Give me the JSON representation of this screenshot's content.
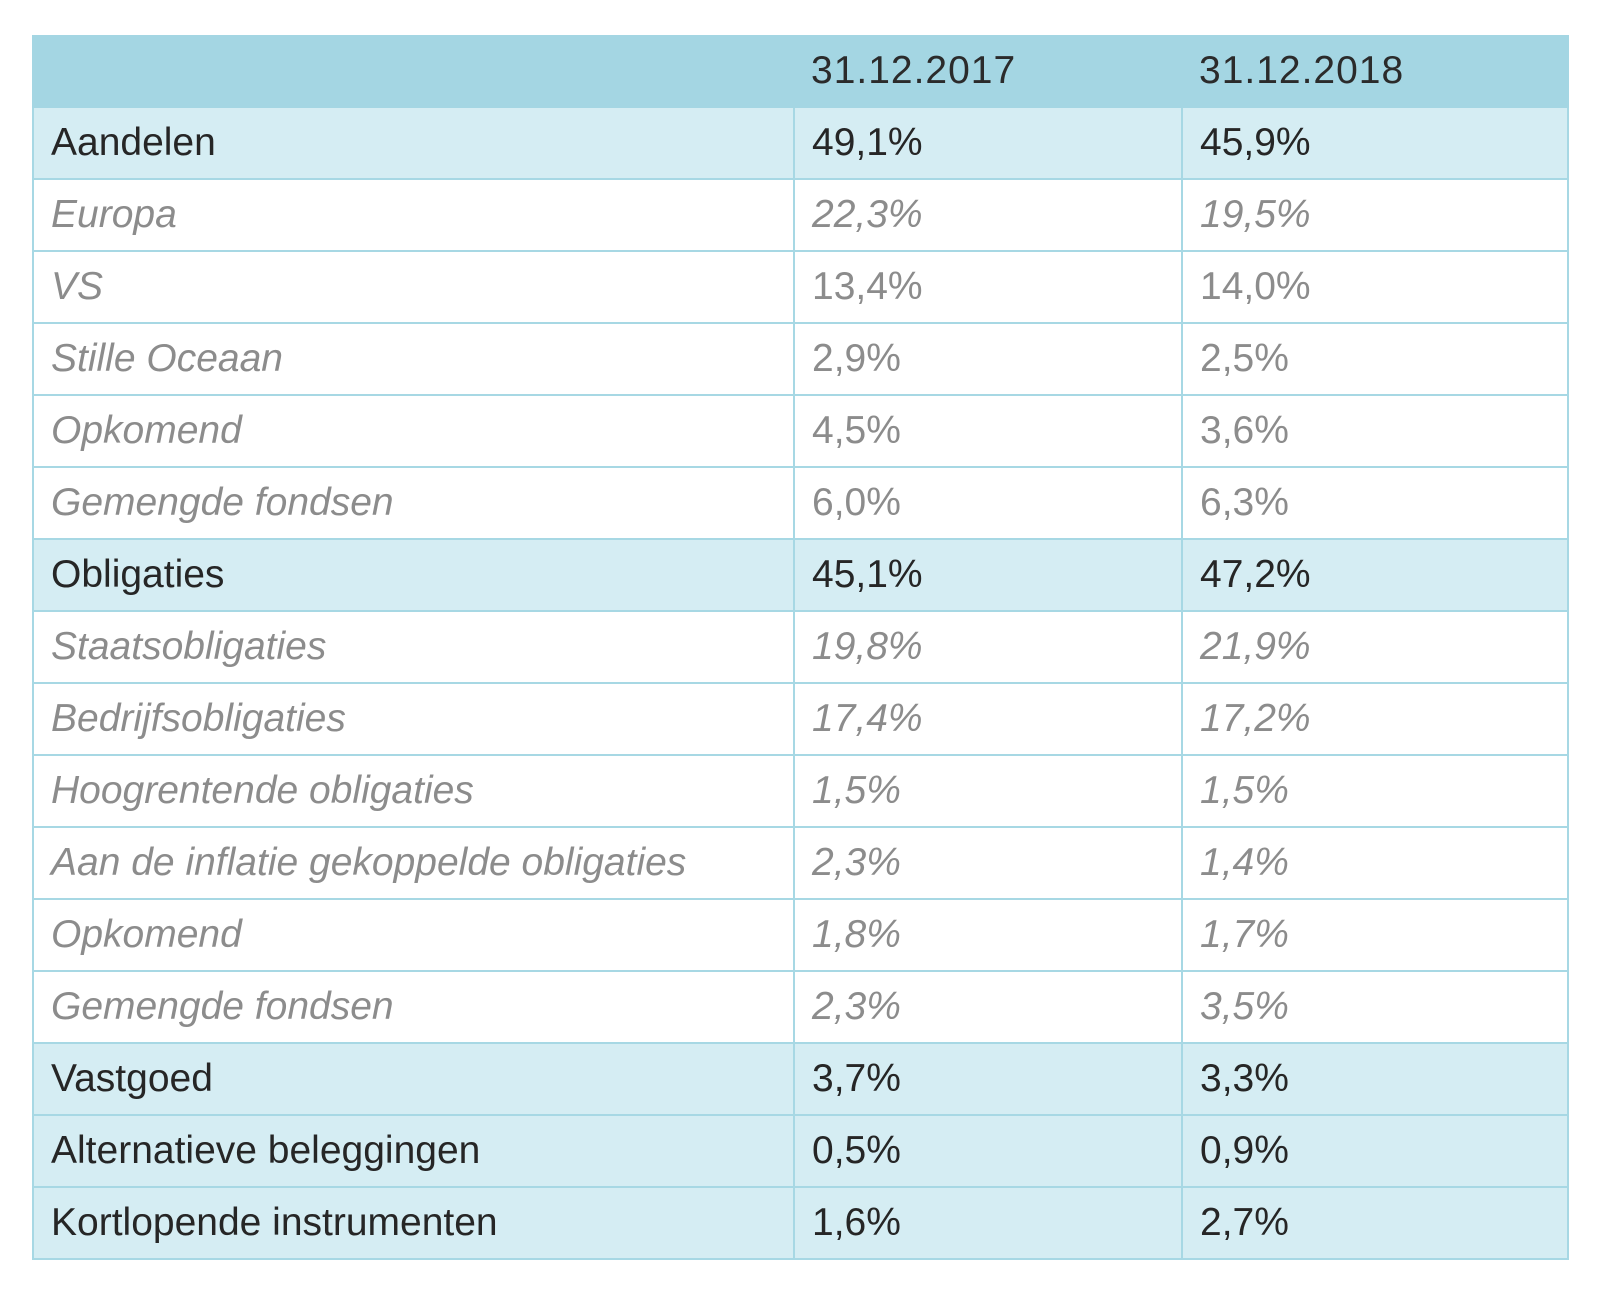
{
  "table": {
    "headers": [
      "",
      "31.12.2017",
      "31.12.2018"
    ],
    "rows": [
      {
        "label": "Aandelen",
        "v2017": "49,1%",
        "v2018": "45,9%",
        "type": "main"
      },
      {
        "label": "Europa",
        "v2017": "22,3%",
        "v2018": "19,5%",
        "type": "sub-italic"
      },
      {
        "label": "VS",
        "v2017": "13,4%",
        "v2018": "14,0%",
        "type": "sub"
      },
      {
        "label": "Stille Oceaan",
        "v2017": "2,9%",
        "v2018": "2,5%",
        "type": "sub"
      },
      {
        "label": "Opkomend",
        "v2017": "4,5%",
        "v2018": "3,6%",
        "type": "sub"
      },
      {
        "label": "Gemengde fondsen",
        "v2017": "6,0%",
        "v2018": "6,3%",
        "type": "sub"
      },
      {
        "label": "Obligaties",
        "v2017": "45,1%",
        "v2018": "47,2%",
        "type": "main"
      },
      {
        "label": "Staatsobligaties",
        "v2017": "19,8%",
        "v2018": "21,9%",
        "type": "sub-italic"
      },
      {
        "label": "Bedrijfsobligaties",
        "v2017": "17,4%",
        "v2018": "17,2%",
        "type": "sub-italic"
      },
      {
        "label": "Hoogrentende obligaties",
        "v2017": "1,5%",
        "v2018": "1,5%",
        "type": "sub-italic"
      },
      {
        "label": "Aan de inflatie gekoppelde obligaties",
        "v2017": "2,3%",
        "v2018": "1,4%",
        "type": "sub-italic"
      },
      {
        "label": "Opkomend",
        "v2017": "1,8%",
        "v2018": "1,7%",
        "type": "sub-italic"
      },
      {
        "label": "Gemengde fondsen",
        "v2017": "2,3%",
        "v2018": "3,5%",
        "type": "sub-italic"
      },
      {
        "label": "Vastgoed",
        "v2017": "3,7%",
        "v2018": "3,3%",
        "type": "main"
      },
      {
        "label": "Alternatieve beleggingen",
        "v2017": "0,5%",
        "v2018": "0,9%",
        "type": "main"
      },
      {
        "label": "Kortlopende instrumenten",
        "v2017": "1,6%",
        "v2018": "2,7%",
        "type": "main"
      }
    ]
  },
  "colors": {
    "header_bg": "#a4d6e3",
    "main_row_bg": "#d5edf3",
    "sub_row_bg": "#ffffff",
    "border": "#a7d8e4",
    "main_text": "#262626",
    "sub_text": "#8c8c8c"
  }
}
